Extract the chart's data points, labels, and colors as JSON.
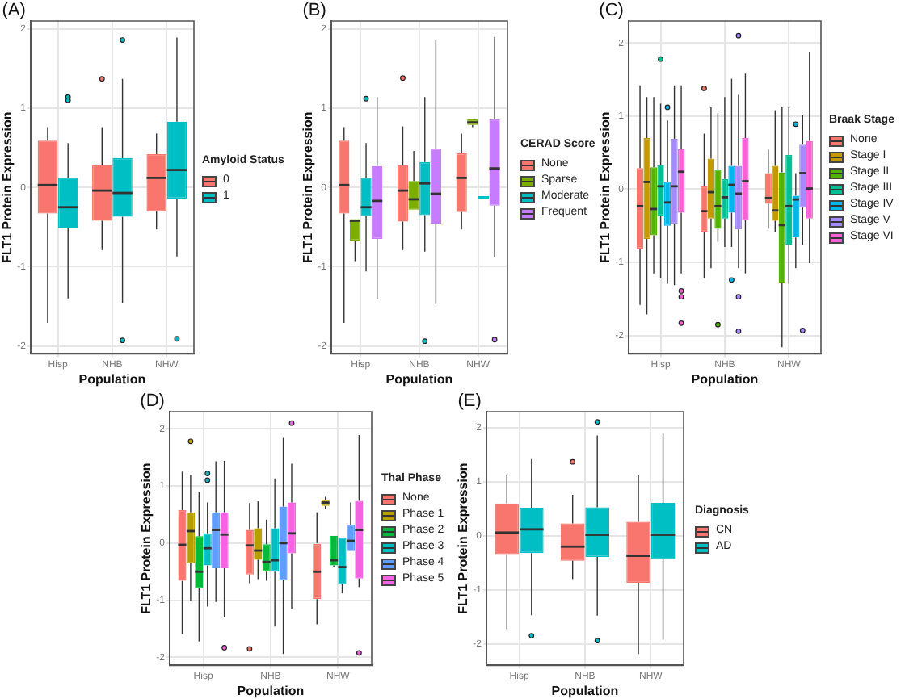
{
  "chart_data": [
    {
      "type": "box",
      "title": "(A)",
      "xlabel": "Population",
      "ylabel": "FLT1 Protein Expression",
      "legend_title": "Amyloid Status",
      "categories": [
        "Hisp",
        "NHB",
        "NHW"
      ],
      "ylim": [
        -2.1,
        2.1
      ],
      "yticks": [
        -2,
        -1,
        0,
        1,
        2
      ],
      "grid": true,
      "legend": "right",
      "series": [
        {
          "name": "0",
          "color": "#f8766d",
          "boxes": [
            {
              "low": -1.71,
              "q1": -0.33,
              "median": 0.03,
              "q3": 0.59,
              "high": 0.76
            },
            {
              "low": -0.79,
              "q1": -0.42,
              "median": -0.04,
              "q3": 0.28,
              "high": 0.76,
              "outliers": [
                1.37
              ]
            },
            {
              "low": -0.53,
              "q1": -0.3,
              "median": 0.12,
              "q3": 0.42,
              "high": 0.68
            }
          ]
        },
        {
          "name": "1",
          "color": "#00bfc4",
          "boxes": [
            {
              "low": -1.4,
              "q1": -0.51,
              "median": -0.25,
              "q3": 0.12,
              "high": 0.56,
              "outliers": [
                1.14,
                1.1
              ]
            },
            {
              "low": -1.46,
              "q1": -0.37,
              "median": -0.07,
              "q3": 0.37,
              "high": 1.37,
              "outliers": [
                1.86,
                -1.93
              ]
            },
            {
              "low": -0.87,
              "q1": -0.14,
              "median": 0.22,
              "q3": 0.83,
              "high": 1.89,
              "outliers": [
                -1.91
              ]
            }
          ]
        }
      ]
    },
    {
      "type": "box",
      "title": "(B)",
      "xlabel": "Population",
      "ylabel": "FLT1 Protein Expression",
      "legend_title": "CERAD Score",
      "categories": [
        "Hisp",
        "NHB",
        "NHW"
      ],
      "ylim": [
        -2.1,
        2.1
      ],
      "yticks": [
        -2,
        -1,
        0,
        1,
        2
      ],
      "grid": true,
      "legend": "right",
      "series": [
        {
          "name": "None",
          "color": "#f8766d",
          "boxes": [
            {
              "low": -1.71,
              "q1": -0.33,
              "median": 0.03,
              "q3": 0.59,
              "high": 0.76
            },
            {
              "low": -0.79,
              "q1": -0.43,
              "median": -0.04,
              "q3": 0.28,
              "high": 0.77,
              "outliers": [
                1.38
              ]
            },
            {
              "low": -0.53,
              "q1": -0.31,
              "median": 0.12,
              "q3": 0.43,
              "high": 0.68
            }
          ]
        },
        {
          "name": "Sparse",
          "color": "#7cae00",
          "boxes": [
            {
              "low": -0.93,
              "q1": -0.67,
              "median": -0.42,
              "q3": -0.4,
              "high": -0.4
            },
            {
              "low": -0.3,
              "q1": -0.28,
              "median": -0.15,
              "q3": 0.08,
              "high": 0.46
            },
            {
              "low": 0.76,
              "q1": 0.79,
              "median": 0.82,
              "q3": 0.86,
              "high": 0.87
            }
          ]
        },
        {
          "name": "Moderate",
          "color": "#00bfc4",
          "boxes": [
            {
              "low": -1.06,
              "q1": -0.36,
              "median": -0.25,
              "q3": 0.12,
              "high": 0.56,
              "outliers": [
                1.12
              ]
            },
            {
              "low": -0.81,
              "q1": -0.35,
              "median": 0.05,
              "q3": 0.32,
              "high": 1.14,
              "outliers": [
                -1.94
              ]
            },
            {
              "low": -0.13,
              "q1": -0.13,
              "median": -0.13,
              "q3": -0.13,
              "high": -0.13
            }
          ]
        },
        {
          "name": "Frequent",
          "color": "#c77cff",
          "boxes": [
            {
              "low": -1.41,
              "q1": -0.65,
              "median": -0.17,
              "q3": 0.27,
              "high": 1.14
            },
            {
              "low": -1.47,
              "q1": -0.46,
              "median": -0.08,
              "q3": 0.49,
              "high": 1.86
            },
            {
              "low": -0.88,
              "q1": -0.23,
              "median": 0.24,
              "q3": 0.86,
              "high": 1.9,
              "outliers": [
                -1.92
              ]
            }
          ]
        }
      ]
    },
    {
      "type": "box",
      "title": "(C)",
      "xlabel": "Population",
      "ylabel": "FLT1 Protein Expression",
      "legend_title": "Braak Stage",
      "categories": [
        "Hisp",
        "NHB",
        "NHW"
      ],
      "ylim": [
        -2.25,
        2.3
      ],
      "yticks": [
        -2,
        -1,
        0,
        1,
        2
      ],
      "grid": true,
      "legend": "right",
      "series": [
        {
          "name": "None",
          "color": "#f8766d",
          "boxes": [
            {
              "low": -1.58,
              "q1": -0.81,
              "median": -0.23,
              "q3": 0.29,
              "high": 1.42
            },
            {
              "low": -1.22,
              "q1": -0.58,
              "median": -0.3,
              "q3": 0.04,
              "high": 0.76,
              "outliers": [
                1.38
              ]
            },
            {
              "low": -0.54,
              "q1": -0.2,
              "median": -0.12,
              "q3": 0.22,
              "high": 0.54
            }
          ]
        },
        {
          "name": "Stage I",
          "color": "#c49a00",
          "boxes": [
            {
              "low": -1.71,
              "q1": -0.68,
              "median": 0.1,
              "q3": 0.7,
              "high": 1.26
            },
            {
              "low": -1.08,
              "q1": -0.4,
              "median": -0.04,
              "q3": 0.42,
              "high": 1.12
            },
            {
              "low": -0.58,
              "q1": -0.43,
              "median": -0.29,
              "q3": 0.32,
              "high": 1.08
            }
          ]
        },
        {
          "name": "Stage II",
          "color": "#53b400",
          "boxes": [
            {
              "low": -1.15,
              "q1": -0.63,
              "median": -0.27,
              "q3": 0.3,
              "high": 1.26
            },
            {
              "low": -0.72,
              "q1": -0.54,
              "median": -0.23,
              "q3": 0.27,
              "high": 1.04,
              "outliers": [
                -1.85
              ]
            },
            {
              "low": -2.16,
              "q1": -1.28,
              "median": -0.49,
              "q3": 0.23,
              "high": 1.12
            }
          ]
        },
        {
          "name": "Stage III",
          "color": "#00c094",
          "boxes": [
            {
              "low": -1.22,
              "q1": -0.36,
              "median": 0.04,
              "q3": 0.33,
              "high": 1.17,
              "outliers": [
                1.78
              ]
            },
            {
              "low": -0.79,
              "q1": -0.4,
              "median": -0.11,
              "q3": 0.14,
              "high": 1.26
            },
            {
              "low": -1.29,
              "q1": -0.76,
              "median": -0.23,
              "q3": 0.47,
              "high": 1.12
            }
          ]
        },
        {
          "name": "Stage IV",
          "color": "#00b6eb",
          "boxes": [
            {
              "low": -1.29,
              "q1": -0.5,
              "median": -0.18,
              "q3": 0.1,
              "high": 0.94,
              "outliers": [
                1.12
              ]
            },
            {
              "low": -0.79,
              "q1": -0.32,
              "median": 0.06,
              "q3": 0.32,
              "high": 1.51,
              "outliers": [
                -1.24
              ]
            },
            {
              "low": -1.08,
              "q1": -0.66,
              "median": -0.14,
              "q3": -0.09,
              "high": 0.22,
              "outliers": [
                0.89
              ]
            }
          ]
        },
        {
          "name": "Stage V",
          "color": "#a58aff",
          "boxes": [
            {
              "low": -1.31,
              "q1": -0.47,
              "median": 0.04,
              "q3": 0.69,
              "high": 1.42
            },
            {
              "low": -1.08,
              "q1": -0.55,
              "median": -0.06,
              "q3": 0.32,
              "high": 1.29,
              "outliers": [
                2.1,
                -1.47,
                -1.94
              ]
            },
            {
              "low": -0.76,
              "q1": -0.25,
              "median": 0.22,
              "q3": 0.61,
              "high": 1.01,
              "outliers": [
                -1.93
              ]
            }
          ]
        },
        {
          "name": "Stage VI",
          "color": "#fb61d7",
          "boxes": [
            {
              "low": -1.15,
              "q1": -0.32,
              "median": 0.24,
              "q3": 0.55,
              "high": 1.42,
              "outliers": [
                -1.39,
                -1.47,
                -1.83
              ]
            },
            {
              "low": -1.15,
              "q1": -0.42,
              "median": 0.11,
              "q3": 0.7,
              "high": 1.58
            },
            {
              "low": -1.01,
              "q1": -0.4,
              "median": 0.01,
              "q3": 0.66,
              "high": 1.88
            }
          ]
        }
      ]
    },
    {
      "type": "box",
      "title": "(D)",
      "xlabel": "Population",
      "ylabel": "FLT1 Protein Expression",
      "legend_title": "Thal Phase",
      "categories": [
        "Hisp",
        "NHB",
        "NHW"
      ],
      "ylim": [
        -2.14,
        2.3
      ],
      "yticks": [
        -2,
        -1,
        0,
        1,
        2
      ],
      "grid": true,
      "legend": "right",
      "series": [
        {
          "name": "None",
          "color": "#f8766d",
          "boxes": [
            {
              "low": -1.59,
              "q1": -0.66,
              "median": -0.03,
              "q3": 0.58,
              "high": 1.25
            },
            {
              "low": -0.7,
              "q1": -0.55,
              "median": -0.04,
              "q3": 0.23,
              "high": 0.7,
              "outliers": [
                -1.85
              ]
            },
            {
              "low": -1.42,
              "q1": -0.98,
              "median": -0.5,
              "q3": 0.0,
              "high": 0.54
            }
          ]
        },
        {
          "name": "Phase 1",
          "color": "#b79f00",
          "boxes": [
            {
              "low": -1.01,
              "q1": -0.35,
              "median": 0.21,
              "q3": 0.54,
              "high": 1.19,
              "outliers": [
                1.78
              ]
            },
            {
              "low": -0.63,
              "q1": -0.29,
              "median": -0.13,
              "q3": 0.26,
              "high": 0.73
            },
            {
              "low": 0.6,
              "q1": 0.65,
              "median": 0.71,
              "q3": 0.76,
              "high": 0.81
            }
          ]
        },
        {
          "name": "Phase 2",
          "color": "#00ba38",
          "boxes": [
            {
              "low": -1.72,
              "q1": -0.79,
              "median": -0.5,
              "q3": 0.12,
              "high": 0.89
            },
            {
              "low": -0.66,
              "q1": -0.5,
              "median": -0.33,
              "q3": -0.02,
              "high": 0.41
            },
            {
              "low": -0.42,
              "q1": -0.39,
              "median": -0.3,
              "q3": 0.13,
              "high": 0.13
            }
          ]
        },
        {
          "name": "Phase 3",
          "color": "#00bfc4",
          "boxes": [
            {
              "low": -1.11,
              "q1": -0.39,
              "median": -0.09,
              "q3": 0.17,
              "high": 0.71,
              "outliers": [
                1.22,
                1.1
              ]
            },
            {
              "low": -1.46,
              "q1": -0.5,
              "median": -0.3,
              "q3": 0.26,
              "high": 1.13
            },
            {
              "low": -0.88,
              "q1": -0.72,
              "median": -0.42,
              "q3": 0.1,
              "high": 0.1
            }
          ]
        },
        {
          "name": "Phase 4",
          "color": "#619cff",
          "boxes": [
            {
              "low": -1.03,
              "q1": -0.44,
              "median": 0.23,
              "q3": 0.54,
              "high": 1.43
            },
            {
              "low": -1.94,
              "q1": -0.65,
              "median": 0.0,
              "q3": 0.64,
              "high": 1.84
            },
            {
              "low": -0.14,
              "q1": -0.14,
              "median": 0.04,
              "q3": 0.32,
              "high": 0.71
            }
          ]
        },
        {
          "name": "Phase 5",
          "color": "#f564e3",
          "boxes": [
            {
              "low": -1.3,
              "q1": -0.44,
              "median": 0.15,
              "q3": 0.54,
              "high": 1.44,
              "outliers": [
                -1.83
              ]
            },
            {
              "low": -1.16,
              "q1": -0.18,
              "median": 0.17,
              "q3": 0.71,
              "high": 1.39,
              "outliers": [
                2.1
              ]
            },
            {
              "low": -0.77,
              "q1": -0.62,
              "median": 0.23,
              "q3": 0.74,
              "high": 1.89,
              "outliers": [
                -1.92
              ]
            }
          ]
        }
      ]
    },
    {
      "type": "box",
      "title": "(E)",
      "xlabel": "Population",
      "ylabel": "FLT1 Protein Expression",
      "legend_title": "Diagnosis",
      "categories": [
        "Hisp",
        "NHB",
        "NHW"
      ],
      "ylim": [
        -2.4,
        2.3
      ],
      "yticks": [
        -2,
        -1,
        0,
        1,
        2
      ],
      "grid": true,
      "legend": "right",
      "series": [
        {
          "name": "CN",
          "color": "#f8766d",
          "boxes": [
            {
              "low": -1.73,
              "q1": -0.34,
              "median": 0.06,
              "q3": 0.6,
              "high": 1.12
            },
            {
              "low": -0.8,
              "q1": -0.46,
              "median": -0.2,
              "q3": 0.23,
              "high": 0.76,
              "outliers": [
                1.37
              ]
            },
            {
              "low": -2.19,
              "q1": -0.87,
              "median": -0.37,
              "q3": 0.26,
              "high": 1.12
            }
          ]
        },
        {
          "name": "AD",
          "color": "#00bfc4",
          "boxes": [
            {
              "low": -1.47,
              "q1": -0.32,
              "median": 0.12,
              "q3": 0.52,
              "high": 1.42,
              "outliers": [
                -1.85
              ]
            },
            {
              "low": -1.48,
              "q1": -0.39,
              "median": 0.02,
              "q3": 0.53,
              "high": 1.86,
              "outliers": [
                2.11,
                -1.94
              ]
            },
            {
              "low": -1.92,
              "q1": -0.43,
              "median": 0.02,
              "q3": 0.61,
              "high": 1.89
            }
          ]
        }
      ]
    }
  ]
}
